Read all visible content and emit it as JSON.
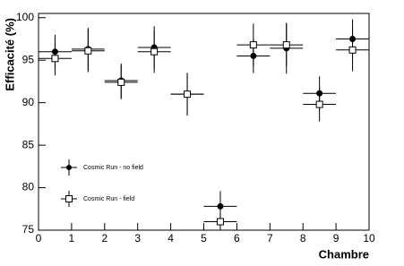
{
  "chart_data": {
    "type": "scatter",
    "x_label": "Chambre",
    "y_label": "Efficacité (%)",
    "x": [
      0.5,
      1.5,
      2.5,
      3.5,
      4.5,
      5.5,
      6.5,
      7.5,
      8.5,
      9.5
    ],
    "xerr": [
      0.5,
      0.5,
      0.5,
      0.5,
      0.5,
      0.5,
      0.5,
      0.5,
      0.5,
      0.5
    ],
    "series": [
      {
        "name": "Cosmic Run - no field",
        "color": "#000000",
        "marker": "circle",
        "values": [
          96.0,
          96.3,
          92.6,
          96.5,
          91.0,
          77.8,
          95.5,
          96.4,
          91.1,
          97.5
        ],
        "yerr": [
          2.0,
          2.5,
          2.0,
          2.5,
          2.5,
          1.8,
          2.0,
          3.0,
          2.0,
          2.3
        ]
      },
      {
        "name": "Cosmic Run - field",
        "color": "#000000",
        "marker": "square",
        "values": [
          95.2,
          96.1,
          92.4,
          96.0,
          91.0,
          76.0,
          96.8,
          96.8,
          89.8,
          96.2
        ],
        "yerr": [
          2.0,
          2.5,
          2.0,
          2.5,
          2.5,
          1.0,
          2.5,
          2.5,
          2.0,
          2.5
        ]
      }
    ],
    "xlim": [
      0,
      10
    ],
    "ylim": [
      75,
      100.5
    ],
    "xticks": [
      0,
      1,
      2,
      3,
      4,
      5,
      6,
      7,
      8,
      9,
      10
    ],
    "yticks": [
      75,
      80,
      85,
      90,
      95,
      100
    ]
  }
}
